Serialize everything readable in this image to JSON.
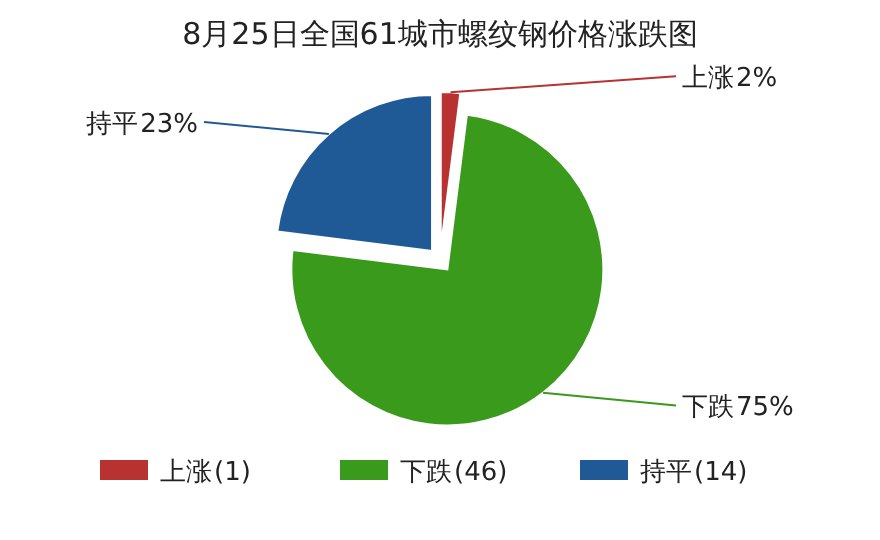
{
  "chart_data": {
    "type": "pie",
    "title": "8月25日全国61城市螺纹钢价格涨跌图",
    "categories": [
      "上涨",
      "下跌",
      "持平"
    ],
    "values": [
      2,
      75,
      23
    ],
    "value_labels": [
      "2%",
      "75%",
      "23%"
    ],
    "colors": [
      "#b83232",
      "#3a9a1c",
      "#1f5a96"
    ],
    "legend": "bottom",
    "annotations": [
      "(1)",
      "(46)",
      "(14)"
    ]
  }
}
